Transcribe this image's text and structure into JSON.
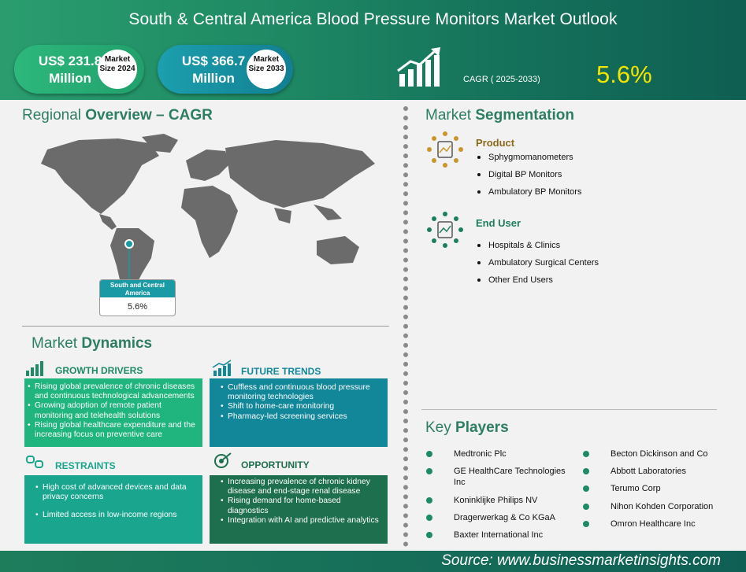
{
  "header": {
    "title": "South & Central America Blood Pressure Monitors Market Outlook",
    "market_2024": {
      "amount": "US$ 231.8 Million",
      "label": "Market Size 2024"
    },
    "market_2033": {
      "amount": "US$ 366.7 Million",
      "label": "Market Size 2033"
    },
    "cagr_label": "CAGR ( 2025-2033)",
    "cagr_value": "5.6%"
  },
  "regional": {
    "heading_prefix": "Regional",
    "heading_bold": "Overview – CAGR",
    "region_label": "South and Central America",
    "region_cagr": "5.6%"
  },
  "segmentation": {
    "heading_prefix": "Market",
    "heading_bold": "Segmentation",
    "groups": [
      {
        "title": "Product",
        "title_color": "#8a6a1a",
        "items": [
          "Sphygmomanometers",
          "Digital BP Monitors",
          "Ambulatory BP Monitors"
        ]
      },
      {
        "title": "End User",
        "title_color": "#1e7e5c",
        "items": [
          "Hospitals & Clinics",
          "Ambulatory Surgical Centers",
          "Other End Users"
        ]
      }
    ]
  },
  "dynamics": {
    "heading_prefix": "Market",
    "heading_bold": "Dynamics",
    "growth_drivers": {
      "title": "GROWTH DRIVERS",
      "items": [
        "Rising global prevalence of chronic diseases and continuous technological advancements",
        "Growing adoption of remote patient monitoring and telehealth solutions",
        "Rising global healthcare expenditure and the increasing focus on preventive care"
      ]
    },
    "future_trends": {
      "title": "FUTURE TRENDS",
      "items": [
        "Cuffless and continuous blood pressure monitoring technologies",
        "Shift to home-care monitoring",
        "Pharmacy-led screening services"
      ]
    },
    "restraints": {
      "title": "RESTRAINTS",
      "items": [
        "High cost of advanced devices and data privacy concerns",
        "Limited access in low-income regions"
      ]
    },
    "opportunity": {
      "title": "OPPORTUNITY",
      "items": [
        "Increasing prevalence of chronic kidney disease and end-stage renal disease",
        "Rising demand for home-based diagnostics",
        "Integration with AI and predictive analytics"
      ]
    }
  },
  "key_players": {
    "heading_prefix": "Key",
    "heading_bold": "Players",
    "left": [
      "Medtronic Plc",
      "GE HealthCare Technologies Inc",
      "Koninklijke Philips NV",
      "Dragerwerkag & Co KGaA",
      "Baxter International Inc"
    ],
    "right": [
      "Becton Dickinson and Co",
      "Abbott Laboratories",
      "Terumo Corp",
      "Nihon Kohden Corporation",
      "Omron Healthcare Inc"
    ]
  },
  "footer": {
    "source": "Source:  www.businessmarketinsights.com"
  },
  "colors": {
    "brand_green": "#2d7d63",
    "growth_box": "#20b47f",
    "trends_box": "#13879a",
    "restraints_box": "#1aa58f",
    "opportunity_box": "#1e6f4e",
    "cagr_value": "#f3e500"
  }
}
